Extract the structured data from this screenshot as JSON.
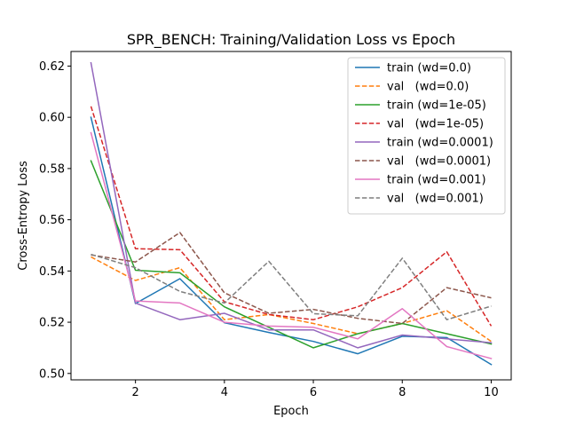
{
  "chart_data": {
    "type": "line",
    "title": "SPR_BENCH: Training/Validation Loss vs Epoch",
    "xlabel": "Epoch",
    "ylabel": "Cross-Entropy Loss",
    "xlim": [
      0.55,
      10.45
    ],
    "ylim": [
      0.4975,
      0.6257
    ],
    "xticks": [
      2,
      4,
      6,
      8,
      10
    ],
    "yticks": [
      0.5,
      0.52,
      0.54,
      0.56,
      0.58,
      0.6,
      0.62
    ],
    "ytick_labels": [
      "0.50",
      "0.52",
      "0.54",
      "0.56",
      "0.58",
      "0.60",
      "0.62"
    ],
    "grid": false,
    "legend_position": "top-right",
    "x": [
      1,
      2,
      3,
      4,
      5,
      6,
      7,
      8,
      9,
      10
    ],
    "series": [
      {
        "name": "train (wd=0.0)",
        "color": "#1f77b4",
        "dash": "solid",
        "values": [
          0.6,
          0.5273,
          0.537,
          0.5198,
          0.516,
          0.5125,
          0.5077,
          0.5145,
          0.514,
          0.5035
        ]
      },
      {
        "name": "val   (wd=0.0)",
        "color": "#ff7f0e",
        "dash": "dashed",
        "values": [
          0.5455,
          0.5363,
          0.5413,
          0.521,
          0.523,
          0.5195,
          0.5155,
          0.5195,
          0.5245,
          0.5125
        ]
      },
      {
        "name": "train (wd=1e-05)",
        "color": "#2ca02c",
        "dash": "solid",
        "values": [
          0.583,
          0.5403,
          0.5393,
          0.526,
          0.518,
          0.51,
          0.5155,
          0.5195,
          0.5155,
          0.5115
        ]
      },
      {
        "name": "val   (wd=1e-05)",
        "color": "#d62728",
        "dash": "dashed",
        "values": [
          0.6043,
          0.5487,
          0.5483,
          0.528,
          0.523,
          0.521,
          0.526,
          0.5335,
          0.5475,
          0.5185
        ]
      },
      {
        "name": "train (wd=0.0001)",
        "color": "#9467bd",
        "dash": "solid",
        "values": [
          0.6213,
          0.5275,
          0.521,
          0.5235,
          0.517,
          0.517,
          0.51,
          0.515,
          0.5135,
          0.512
        ]
      },
      {
        "name": "val   (wd=0.0001)",
        "color": "#8c564b",
        "dash": "dashed",
        "values": [
          0.5463,
          0.5435,
          0.555,
          0.5315,
          0.5235,
          0.525,
          0.5215,
          0.5195,
          0.5335,
          0.5295
        ]
      },
      {
        "name": "train (wd=0.001)",
        "color": "#e377c2",
        "dash": "solid",
        "values": [
          0.594,
          0.5283,
          0.5275,
          0.52,
          0.5185,
          0.518,
          0.5135,
          0.5253,
          0.5105,
          0.5058
        ]
      },
      {
        "name": "val   (wd=0.001)",
        "color": "#7f7f7f",
        "dash": "dashed",
        "values": [
          0.5465,
          0.5413,
          0.532,
          0.5275,
          0.5438,
          0.5233,
          0.5225,
          0.545,
          0.521,
          0.5263
        ]
      }
    ]
  }
}
